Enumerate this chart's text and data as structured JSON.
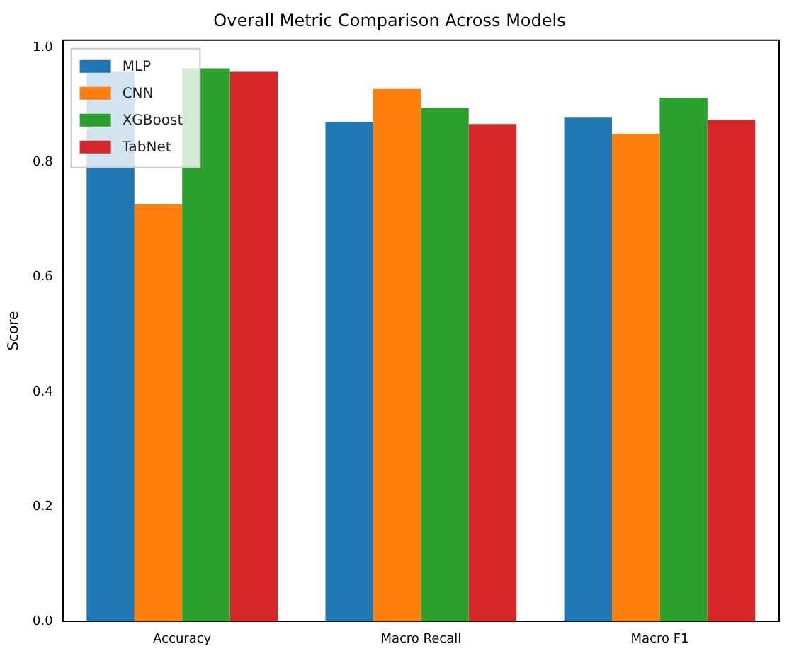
{
  "chart_data": {
    "type": "bar",
    "title": "Overall Metric Comparison Across Models",
    "ylabel": "Score",
    "categories": [
      "Accuracy",
      "Macro Recall",
      "Macro F1"
    ],
    "series": [
      {
        "name": "MLP",
        "color": "#1f77b4",
        "values": [
          0.958,
          0.871,
          0.878
        ]
      },
      {
        "name": "CNN",
        "color": "#ff7f0e",
        "values": [
          0.727,
          0.928,
          0.85
        ]
      },
      {
        "name": "XGBoost",
        "color": "#2ca02c",
        "values": [
          0.964,
          0.895,
          0.913
        ]
      },
      {
        "name": "TabNet",
        "color": "#d62728",
        "values": [
          0.958,
          0.867,
          0.874
        ]
      }
    ],
    "ylim": [
      0,
      1.013
    ],
    "yticks": [
      {
        "value": 0,
        "label": "0.0"
      },
      0.2,
      0.4,
      0.6,
      0.8,
      {
        "value": 1,
        "label": "1.0"
      }
    ],
    "grid": false,
    "legend": "top left"
  }
}
